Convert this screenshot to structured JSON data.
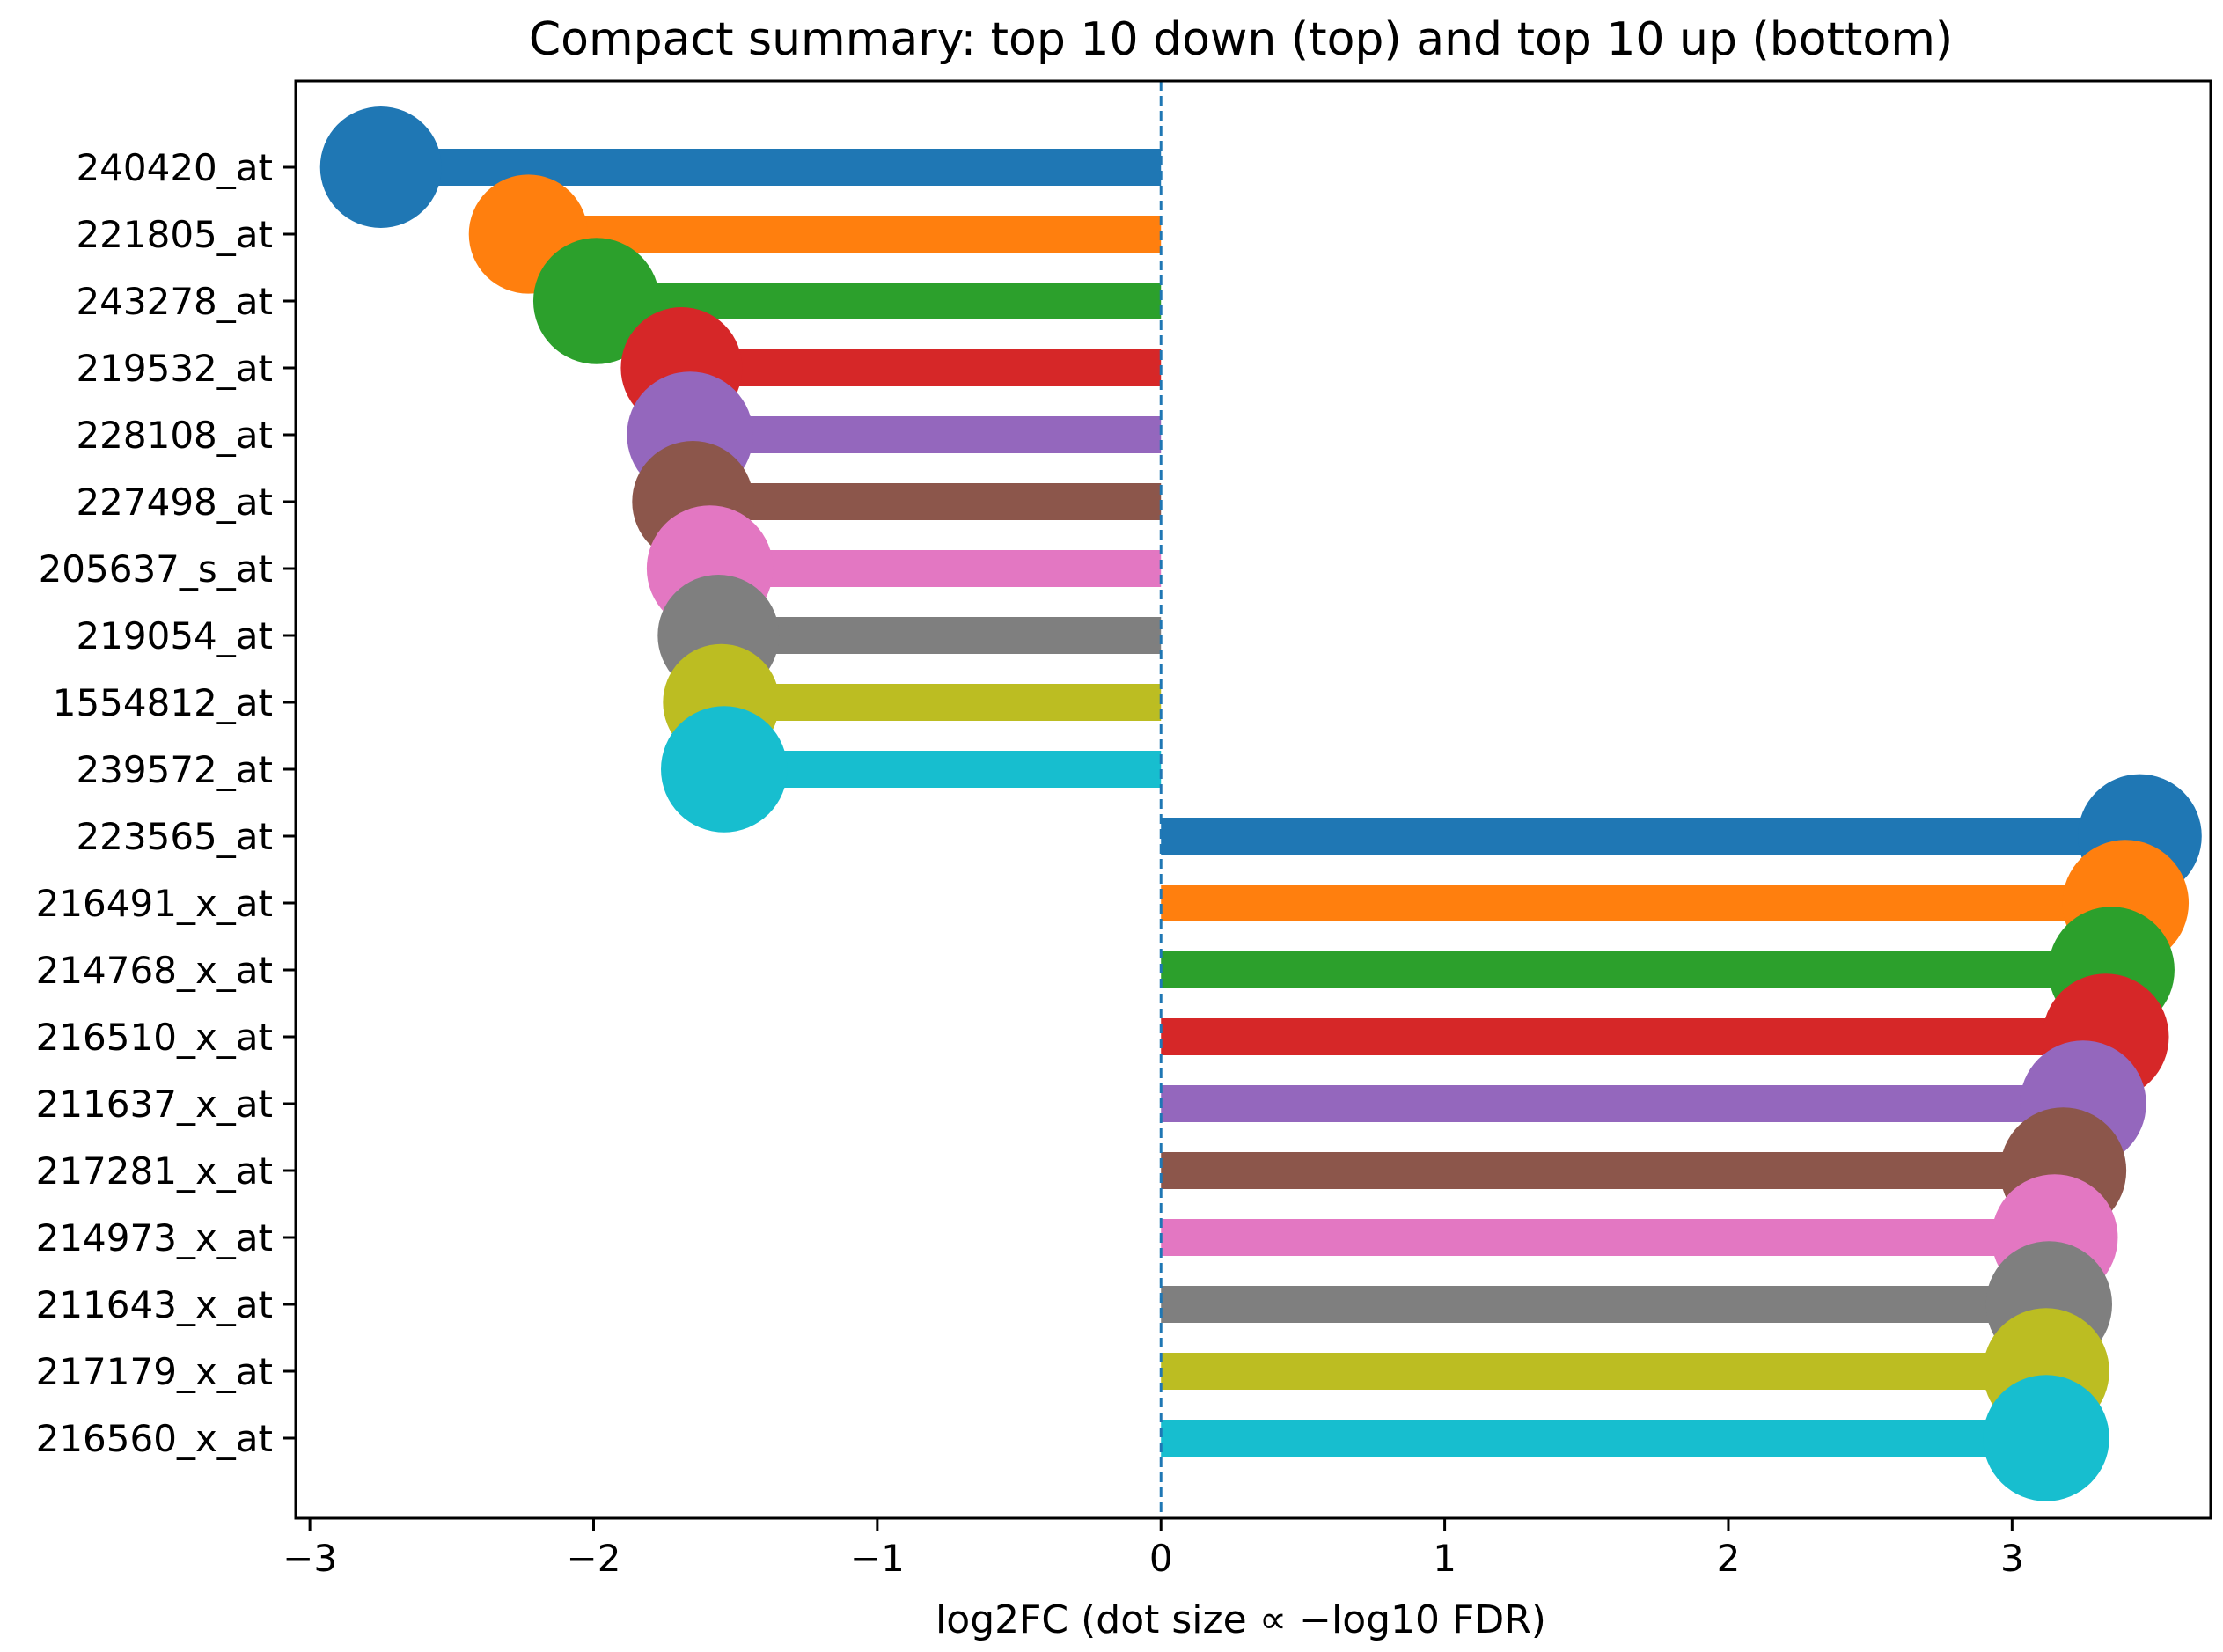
{
  "chart_data": {
    "type": "lollipop",
    "title": "Compact summary: top 10 down (top) and top 10 up (bottom)",
    "xlabel": "log2FC (dot size ∝ −log10 FDR)",
    "ylabel": "",
    "xlim": [
      -3.05,
      3.7
    ],
    "xticks": [
      -3,
      -2,
      -1,
      0,
      1,
      2,
      3
    ],
    "xtick_labels": [
      "−3",
      "−2",
      "−1",
      "0",
      "1",
      "2",
      "3"
    ],
    "reference_line": {
      "x": 0,
      "style": "dashed",
      "color": "#1f77b4"
    },
    "grid": false,
    "legend": "none",
    "points": [
      {
        "label": "240420_at",
        "log2fc": -2.75,
        "dot_size": 1.0,
        "color": "#1f77b4"
      },
      {
        "label": "221805_at",
        "log2fc": -2.23,
        "dot_size": 0.98,
        "color": "#ff7f0e"
      },
      {
        "label": "243278_at",
        "log2fc": -1.99,
        "dot_size": 1.04,
        "color": "#2ca02c"
      },
      {
        "label": "219532_at",
        "log2fc": -1.69,
        "dot_size": 1.0,
        "color": "#d62728"
      },
      {
        "label": "228108_at",
        "log2fc": -1.66,
        "dot_size": 1.04,
        "color": "#9467bd"
      },
      {
        "label": "227498_at",
        "log2fc": -1.65,
        "dot_size": 1.0,
        "color": "#8c564b"
      },
      {
        "label": "205637_s_at",
        "log2fc": -1.59,
        "dot_size": 1.04,
        "color": "#e377c2"
      },
      {
        "label": "219054_at",
        "log2fc": -1.56,
        "dot_size": 1.0,
        "color": "#7f7f7f"
      },
      {
        "label": "1554812_at",
        "log2fc": -1.55,
        "dot_size": 0.96,
        "color": "#bcbd22"
      },
      {
        "label": "239572_at",
        "log2fc": -1.54,
        "dot_size": 1.04,
        "color": "#17becf"
      },
      {
        "label": "223565_at",
        "log2fc": 3.45,
        "dot_size": 1.02,
        "color": "#1f77b4"
      },
      {
        "label": "216491_x_at",
        "log2fc": 3.4,
        "dot_size": 1.04,
        "color": "#ff7f0e"
      },
      {
        "label": "214768_x_at",
        "log2fc": 3.35,
        "dot_size": 1.04,
        "color": "#2ca02c"
      },
      {
        "label": "216510_x_at",
        "log2fc": 3.33,
        "dot_size": 1.04,
        "color": "#d62728"
      },
      {
        "label": "211637_x_at",
        "log2fc": 3.25,
        "dot_size": 1.04,
        "color": "#9467bd"
      },
      {
        "label": "217281_x_at",
        "log2fc": 3.18,
        "dot_size": 1.04,
        "color": "#8c564b"
      },
      {
        "label": "214973_x_at",
        "log2fc": 3.15,
        "dot_size": 1.04,
        "color": "#e377c2"
      },
      {
        "label": "211643_x_at",
        "log2fc": 3.13,
        "dot_size": 1.04,
        "color": "#7f7f7f"
      },
      {
        "label": "217179_x_at",
        "log2fc": 3.12,
        "dot_size": 1.04,
        "color": "#bcbd22"
      },
      {
        "label": "216560_x_at",
        "log2fc": 3.12,
        "dot_size": 1.04,
        "color": "#17becf"
      }
    ]
  }
}
